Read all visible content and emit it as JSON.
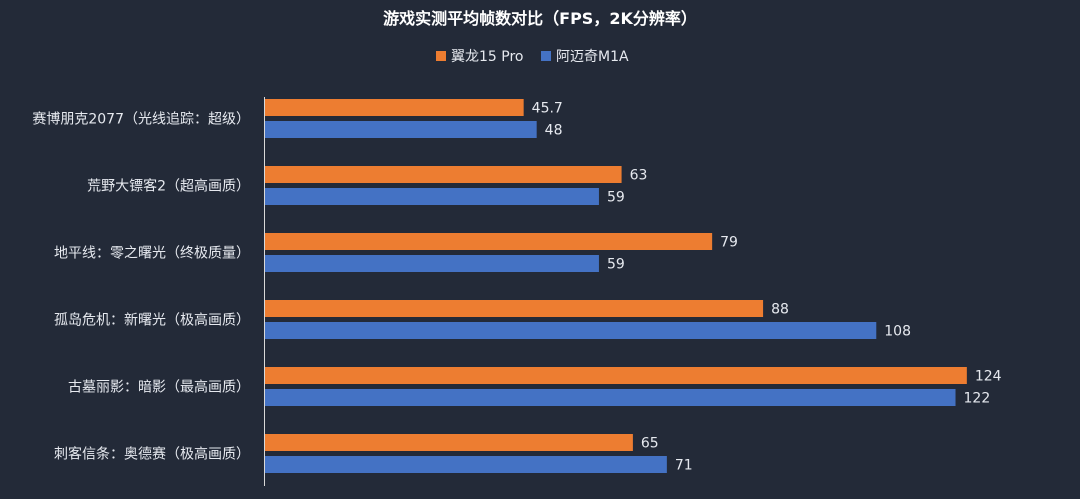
{
  "chart_data": {
    "type": "bar",
    "orientation": "horizontal",
    "title": "游戏实测平均帧数对比（FPS，2K分辨率）",
    "categories": [
      "赛博朋克2077（光线追踪：超级）",
      "荒野大镖客2（超高画质）",
      "地平线：零之曙光（终极质量）",
      "孤岛危机：新曙光（极高画质）",
      "古墓丽影：暗影（最高画质）",
      "刺客信条：奥德赛（极高画质）"
    ],
    "series": [
      {
        "name": "翼龙15 Pro",
        "color": "#ed7d31",
        "values": [
          45.7,
          63,
          79,
          88,
          124,
          65
        ]
      },
      {
        "name": "阿迈奇M1A",
        "color": "#4472c4",
        "values": [
          48,
          59,
          59,
          108,
          122,
          71
        ]
      }
    ],
    "xlim": [
      0,
      125
    ],
    "grid": false,
    "legend_position": "top",
    "background_color": "#232a38",
    "axis_color": "#d9d9d9"
  }
}
